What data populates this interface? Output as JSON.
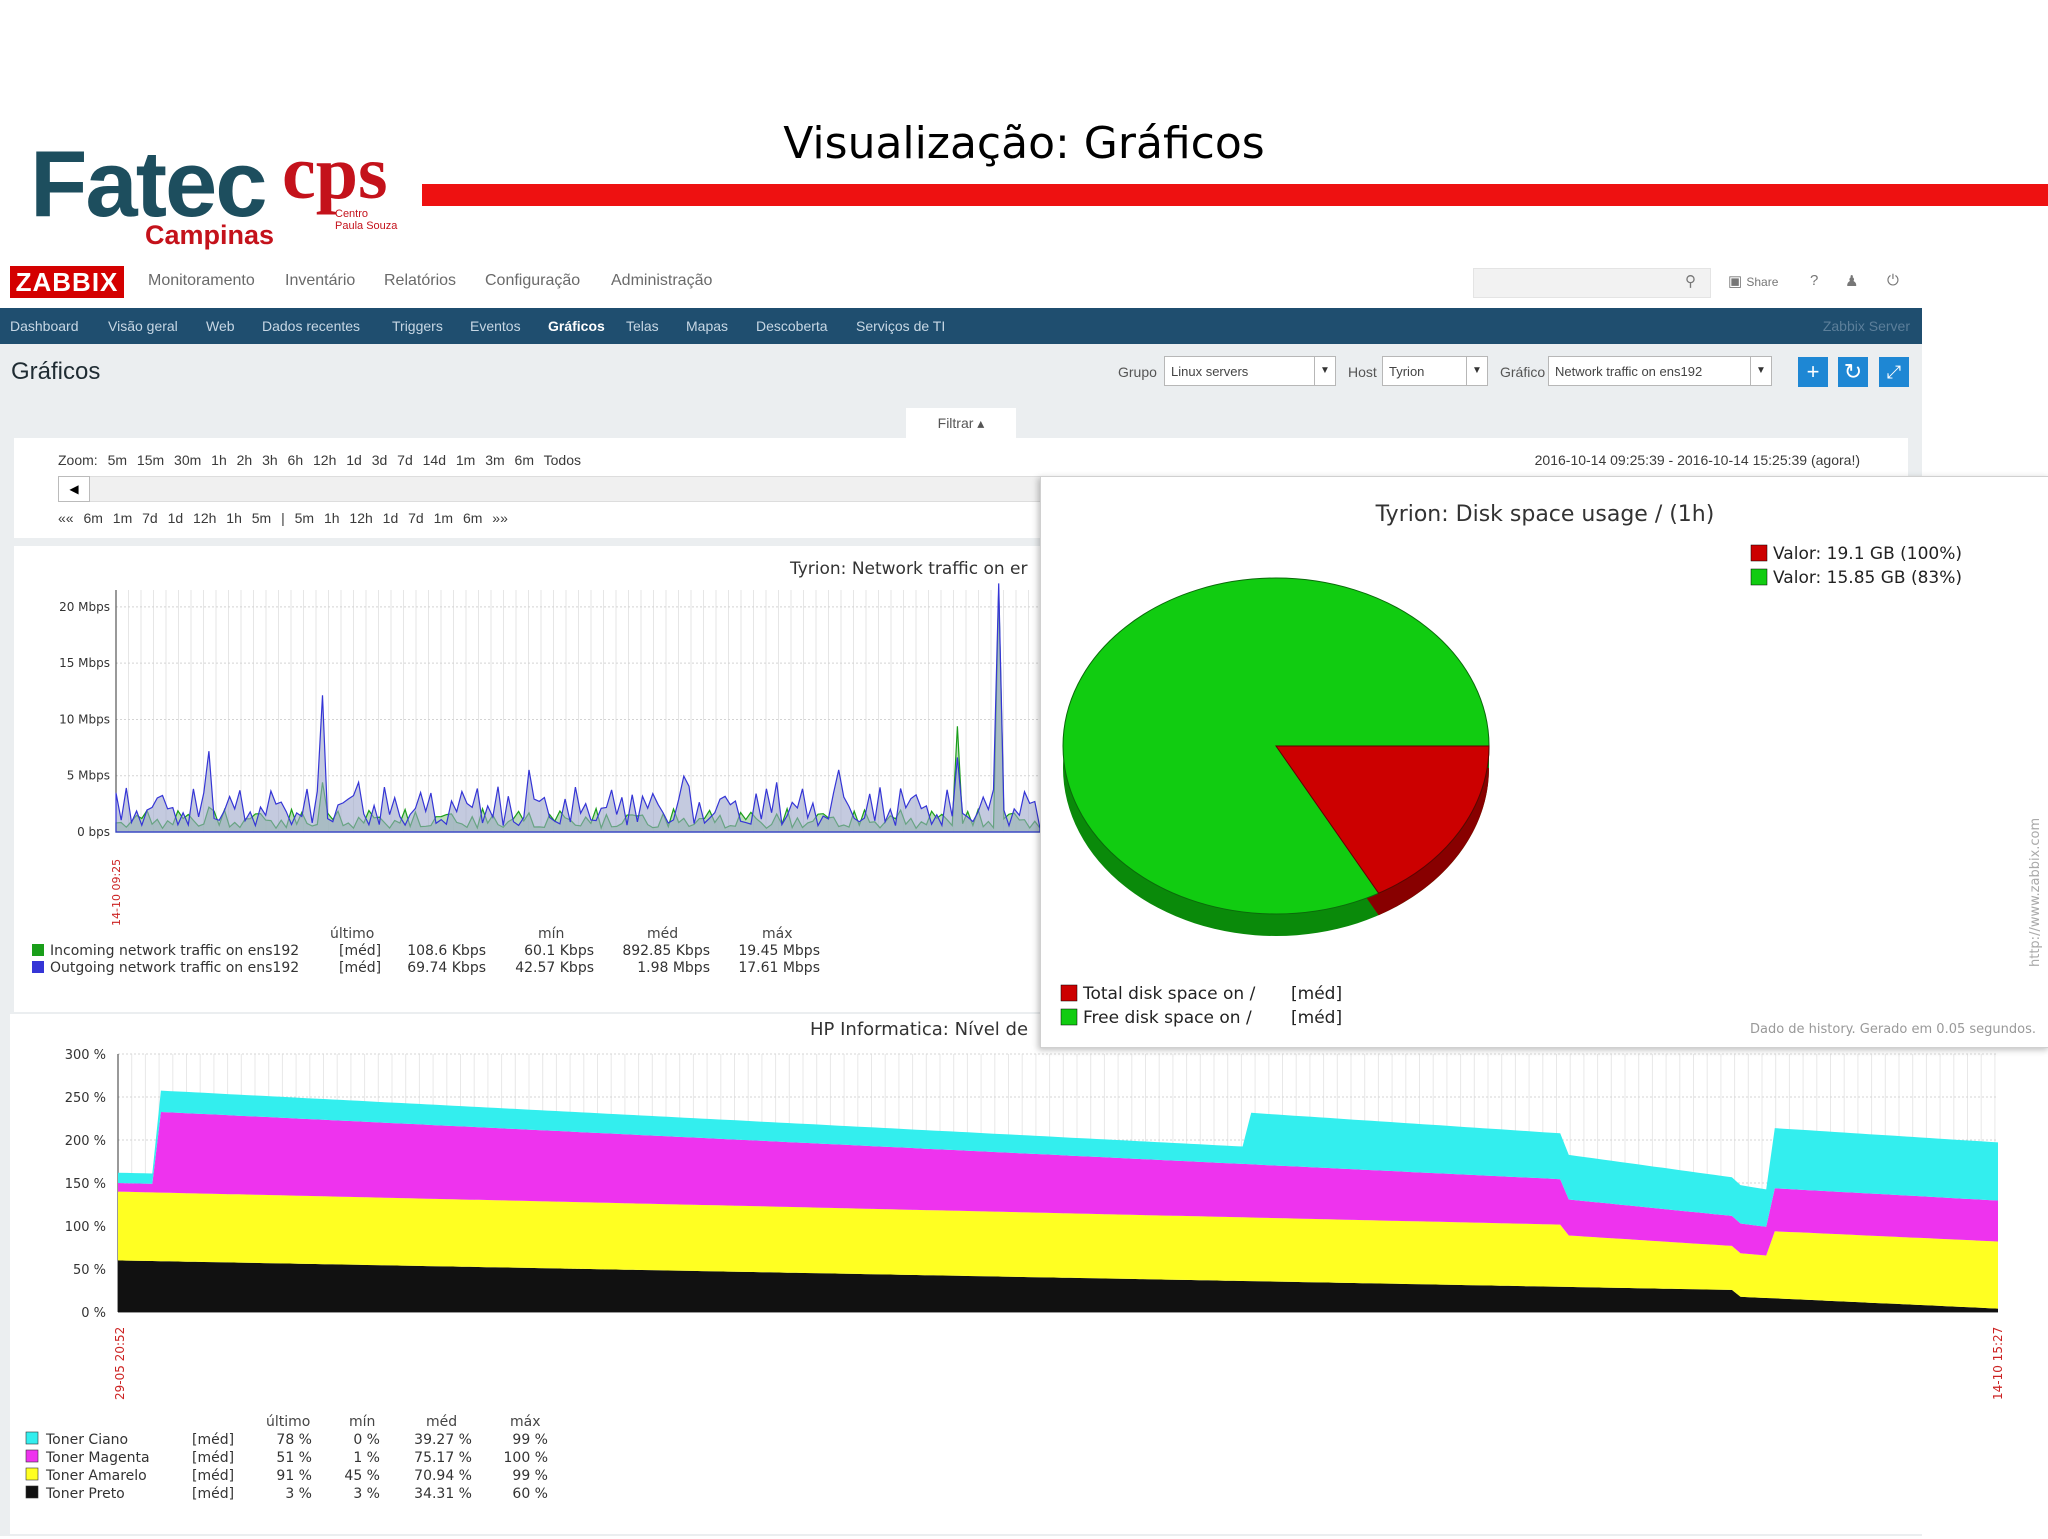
{
  "slide": {
    "title": "Visualização: Gráficos",
    "logo": {
      "brand": "Fatec",
      "city": "Campinas",
      "cps": "cps",
      "cps_sub_1": "Centro",
      "cps_sub_2": "Paula Souza"
    }
  },
  "zabbix": {
    "logo": "ZABBIX",
    "main_menu": [
      "Monitoramento",
      "Inventário",
      "Relatórios",
      "Configuração",
      "Administração"
    ],
    "tools": {
      "share": "Share",
      "help": "?",
      "user": "user",
      "logout": "logout"
    },
    "sub_menu": [
      "Dashboard",
      "Visão geral",
      "Web",
      "Dados recentes",
      "Triggers",
      "Eventos",
      "Gráficos",
      "Telas",
      "Mapas",
      "Descoberta",
      "Serviços de TI"
    ],
    "active_sub": "Gráficos",
    "server_name": "Zabbix Server",
    "page_title": "Gráficos",
    "filters": {
      "group_label": "Grupo",
      "group_value": "Linux servers",
      "host_label": "Host",
      "host_value": "Tyrion",
      "graph_label": "Gráfico",
      "graph_value": "Network traffic on ens192"
    },
    "filter_tab": "Filtrar ▴",
    "zoom_row": "Zoom: 5m 15m 30m 1h 2h 3h 6h 12h 1d 3d 7d 14d 1m 3m 6m Todos",
    "date_range": "2016-10-14 09:25:39 - 2016-10-14 15:25:39 (agora!)",
    "nav_row": "«« 6m 1m 7d 1d 12h 1h 5m | 5m 1h 12h 1d 7d 1m 6m »»"
  },
  "net_graph": {
    "title": "Tyrion: Network traffic on er",
    "y_ticks": [
      "20 Mbps",
      "15 Mbps",
      "10 Mbps",
      "5 Mbps",
      "0 bps"
    ],
    "x_start_label": "14-10 09:25",
    "stat_headers": [
      "último",
      "mín",
      "méd",
      "máx"
    ],
    "series": [
      {
        "name": "Incoming network traffic on ens192",
        "fn": "[méd]",
        "color": "#1a9e1a",
        "ultimo": "108.6 Kbps",
        "min": "60.1 Kbps",
        "med": "892.85 Kbps",
        "max": "19.45 Mbps"
      },
      {
        "name": "Outgoing network traffic on ens192",
        "fn": "[méd]",
        "color": "#3535d6",
        "ultimo": "69.74 Kbps",
        "min": "42.57 Kbps",
        "med": "1.98 Mbps",
        "max": "17.61 Mbps"
      }
    ]
  },
  "chart_data": [
    {
      "type": "pie",
      "title": "Tyrion: Disk space usage / (1h)",
      "slices": [
        {
          "name": "Total disk space on /",
          "fn": "[méd]",
          "legend_value": "Valor: 19.1 GB (100%)",
          "color": "#cc0000",
          "fraction": 0.17
        },
        {
          "name": "Free disk space on /",
          "fn": "[méd]",
          "legend_value": "Valor: 15.85 GB (83%)",
          "color": "#11cc11",
          "fraction": 0.83
        }
      ],
      "footer": "Dado de history. Gerado em 0.05 segundos.",
      "watermark": "http://www.zabbix.com"
    },
    {
      "type": "area",
      "title": "HP Informatica: Nível de",
      "ylabel_ticks": [
        "300 %",
        "250 %",
        "200 %",
        "150 %",
        "100 %",
        "50 %",
        "0 %"
      ],
      "ylim": [
        0,
        300
      ],
      "x_start_label": "29-05 20:52",
      "x_end_label": "14-10 15:27",
      "stat_headers": [
        "último",
        "mín",
        "méd",
        "máx"
      ],
      "series": [
        {
          "name": "Toner Ciano",
          "fn": "[méd]",
          "color": "#33eeee",
          "ultimo": "78 %",
          "min": "0 %",
          "med": "39.27 %",
          "max": "99 %"
        },
        {
          "name": "Toner Magenta",
          "fn": "[méd]",
          "color": "#ee33ee",
          "ultimo": "51 %",
          "min": "1 %",
          "med": "75.17 %",
          "max": "100 %"
        },
        {
          "name": "Toner Amarelo",
          "fn": "[méd]",
          "color": "#ffff22",
          "ultimo": "91 %",
          "min": "45 %",
          "med": "70.94 %",
          "max": "99 %"
        },
        {
          "name": "Toner Preto",
          "fn": "[méd]",
          "color": "#111111",
          "ultimo": "3 %",
          "min": "3 %",
          "med": "34.31 %",
          "max": "60 %"
        }
      ]
    }
  ]
}
